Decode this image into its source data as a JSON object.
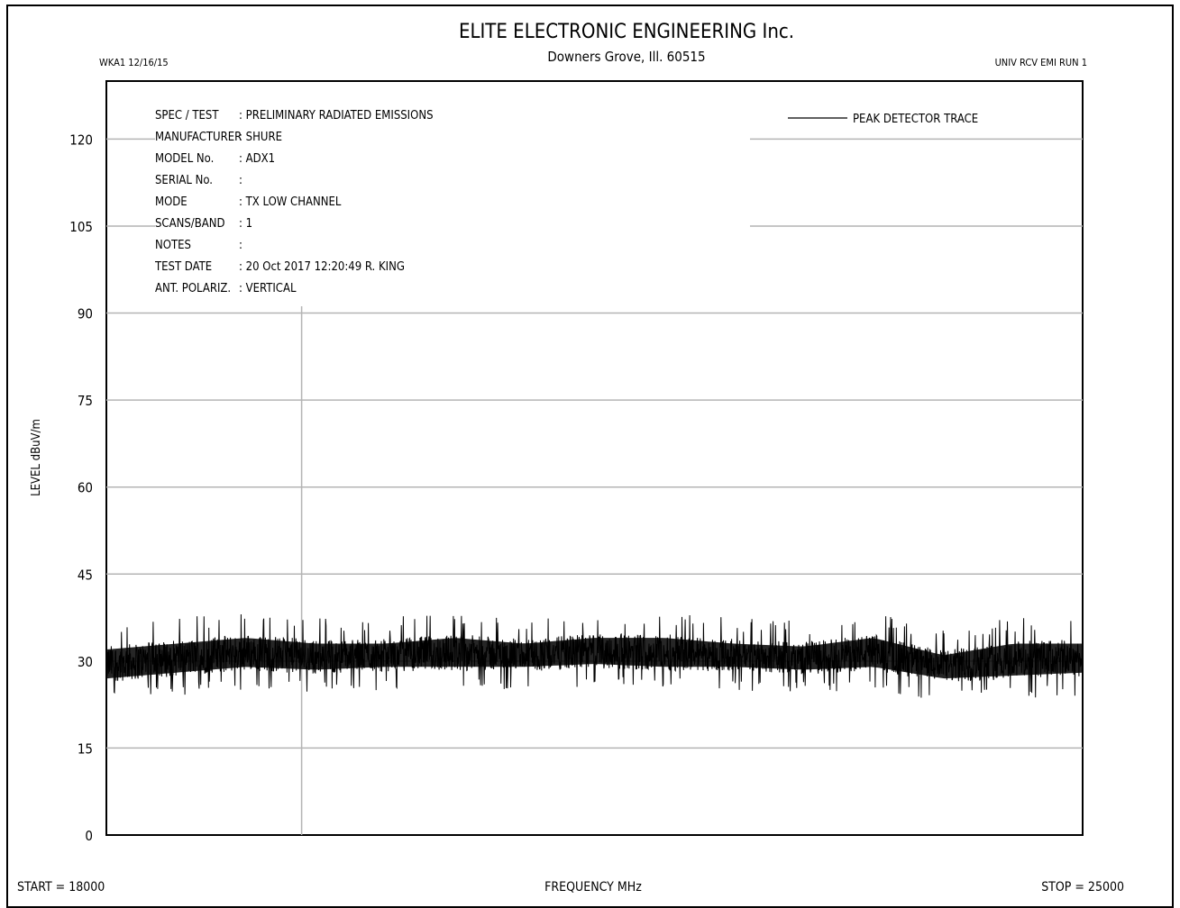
{
  "header": {
    "company": "ELITE ELECTRONIC ENGINEERING Inc.",
    "address": "Downers Grove, Ill. 60515",
    "left_id": "WKA1  12/16/15",
    "right_id": "UNIV RCV EMI  RUN 1"
  },
  "info": [
    {
      "key": "SPEC / TEST",
      "value": ": PRELIMINARY RADIATED EMISSIONS"
    },
    {
      "key": "MANUFACTURER",
      "value": ": SHURE"
    },
    {
      "key": "MODEL No.",
      "value": ": ADX1"
    },
    {
      "key": "SERIAL No.",
      "value": ":"
    },
    {
      "key": "MODE",
      "value": ": TX LOW CHANNEL"
    },
    {
      "key": "SCANS/BAND",
      "value": ": 1"
    },
    {
      "key": "NOTES",
      "value": ":"
    },
    {
      "key": "TEST DATE",
      "value": ": 20 Oct 2017 12:20:49  R. KING"
    },
    {
      "key": "ANT. POLARIZ.",
      "value": ": VERTICAL"
    }
  ],
  "footer": {
    "start": "START = 18000",
    "stop": "STOP = 25000"
  },
  "chart_data": {
    "type": "line",
    "xlabel": "FREQUENCY  MHz",
    "ylabel": "LEVEL  dBuV/m",
    "xlim": [
      18000,
      25000
    ],
    "ylim": [
      0,
      130
    ],
    "yticks": [
      0,
      15,
      30,
      45,
      60,
      75,
      90,
      105,
      120
    ],
    "ytick_labels": [
      "0",
      "15",
      "30",
      "45",
      "60",
      "75",
      "90",
      "105",
      "120"
    ],
    "grid": true,
    "legend_placement": "top-right",
    "series": [
      {
        "name": "PEAK  DETECTOR TRACE",
        "color": "#000000",
        "envelope": {
          "x": [
            18000,
            18500,
            19000,
            19500,
            20000,
            20500,
            21000,
            21500,
            22000,
            22500,
            23000,
            23500,
            24000,
            24500,
            25000
          ],
          "y_min": [
            25,
            26,
            27,
            26.5,
            27,
            27,
            27,
            27.5,
            27,
            27,
            26.5,
            27,
            25,
            25.5,
            26
          ],
          "y_max": [
            34,
            35,
            36,
            35,
            35,
            36,
            35,
            36,
            36,
            35,
            34.5,
            36,
            33,
            35,
            35
          ]
        }
      }
    ]
  }
}
